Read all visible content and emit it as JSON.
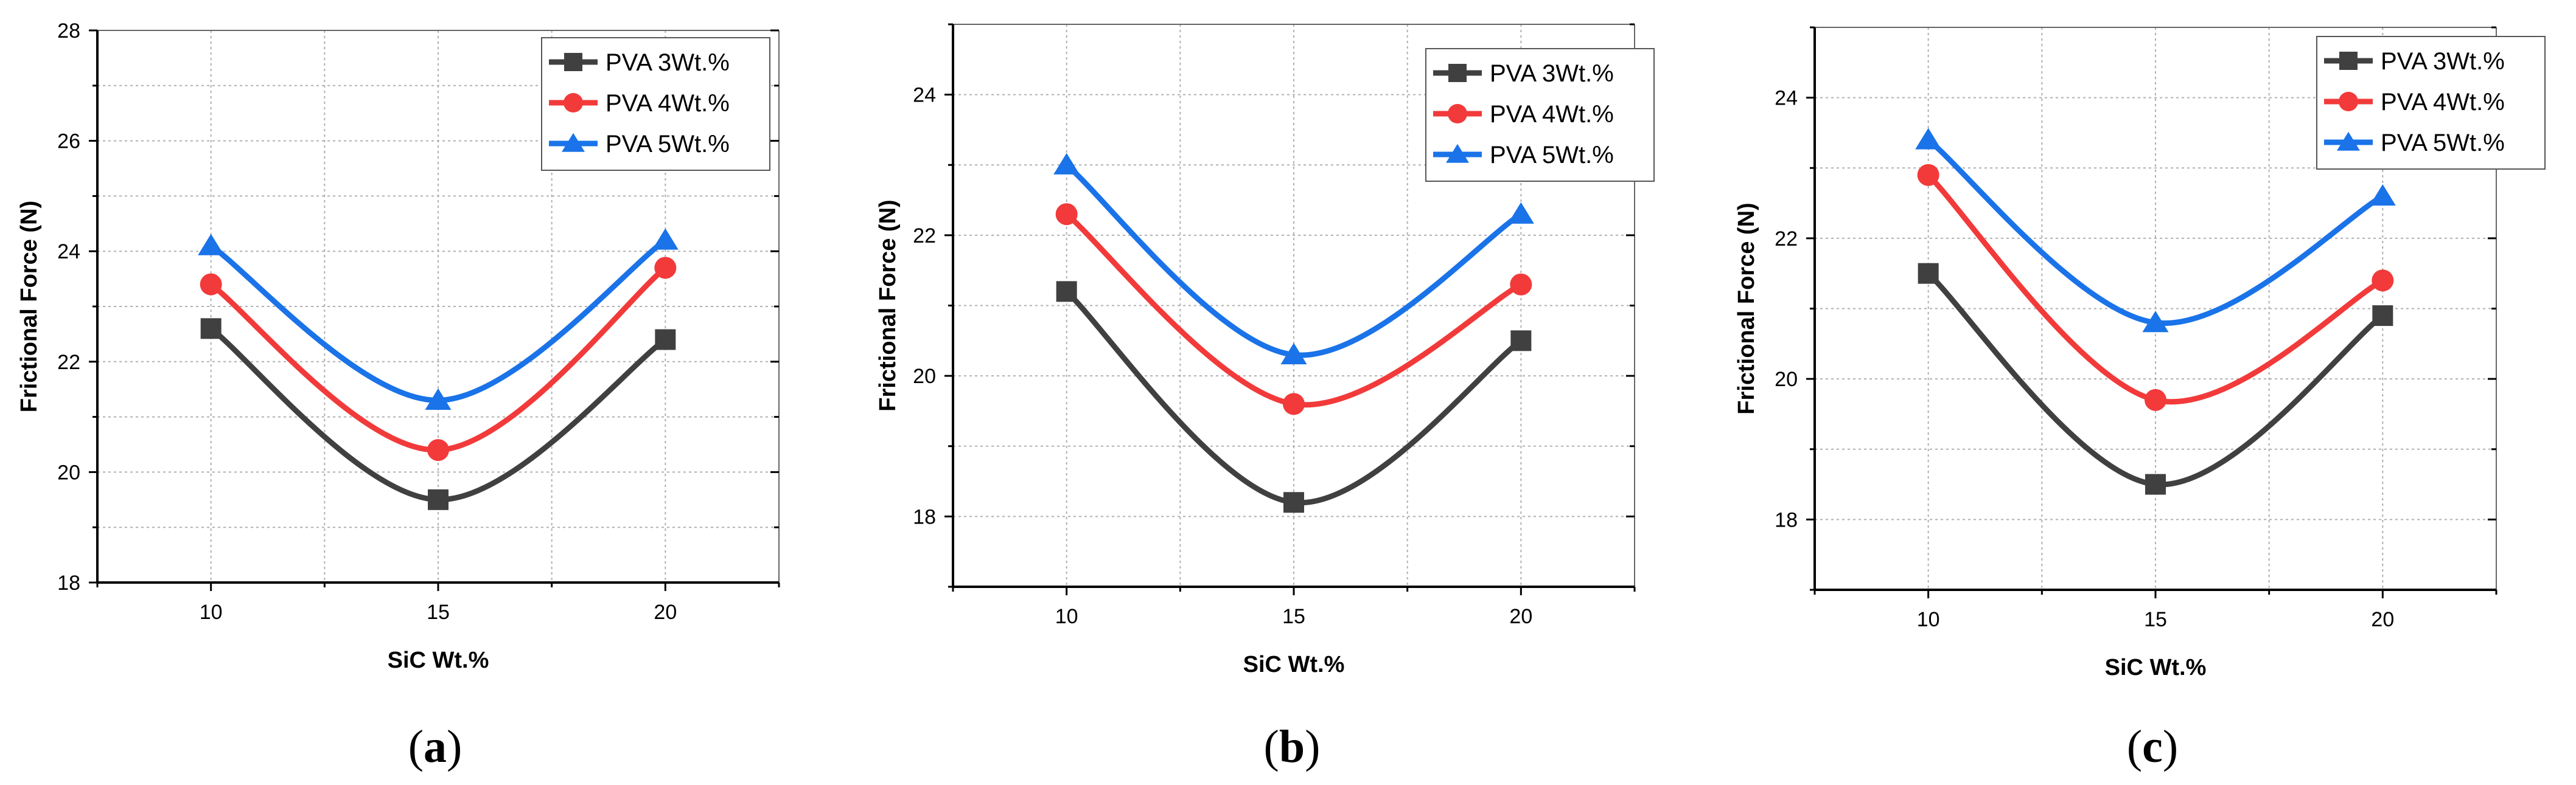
{
  "chart_data": [
    {
      "type": "line",
      "caption_letter": "a",
      "xlabel": "SiC Wt.%",
      "ylabel": "Frictional Force (N)",
      "categories": [
        "10",
        "15",
        "20"
      ],
      "x": [
        10,
        15,
        20
      ],
      "xlim": [
        7.5,
        22.5
      ],
      "ylim": [
        18,
        28
      ],
      "yticks": [
        18,
        20,
        22,
        24,
        26,
        28
      ],
      "grid": true,
      "legend_position": "top-right",
      "series": [
        {
          "name": "PVA 3Wt.%",
          "color": "#404040",
          "marker": "square",
          "values": [
            22.6,
            19.5,
            22.4
          ]
        },
        {
          "name": "PVA 4Wt.%",
          "color": "#f23a3a",
          "marker": "circle",
          "values": [
            23.4,
            20.4,
            23.7
          ]
        },
        {
          "name": "PVA 5Wt.%",
          "color": "#1a73e8",
          "marker": "triangle",
          "values": [
            24.1,
            21.3,
            24.2
          ]
        }
      ]
    },
    {
      "type": "line",
      "caption_letter": "b",
      "xlabel": "SiC Wt.%",
      "ylabel": "Frictional Force (N)",
      "categories": [
        "10",
        "15",
        "20"
      ],
      "x": [
        10,
        15,
        20
      ],
      "xlim": [
        7.5,
        22.5
      ],
      "ylim": [
        17,
        25
      ],
      "yticks": [
        18,
        20,
        22,
        24
      ],
      "grid": true,
      "legend_position": "top-right",
      "series": [
        {
          "name": "PVA 3Wt.%",
          "color": "#404040",
          "marker": "square",
          "values": [
            21.2,
            18.2,
            20.5
          ]
        },
        {
          "name": "PVA 4Wt.%",
          "color": "#f23a3a",
          "marker": "circle",
          "values": [
            22.3,
            19.6,
            21.3
          ]
        },
        {
          "name": "PVA 5Wt.%",
          "color": "#1a73e8",
          "marker": "triangle",
          "values": [
            23.0,
            20.3,
            22.3
          ]
        }
      ]
    },
    {
      "type": "line",
      "caption_letter": "c",
      "xlabel": "SiC Wt.%",
      "ylabel": "Frictional Force (N)",
      "categories": [
        "10",
        "15",
        "20"
      ],
      "x": [
        10,
        15,
        20
      ],
      "xlim": [
        7.5,
        22.5
      ],
      "ylim": [
        17,
        25
      ],
      "yticks": [
        18,
        20,
        22,
        24
      ],
      "grid": true,
      "legend_position": "top-right",
      "series": [
        {
          "name": "PVA 3Wt.%",
          "color": "#404040",
          "marker": "square",
          "values": [
            21.5,
            18.5,
            20.9
          ]
        },
        {
          "name": "PVA 4Wt.%",
          "color": "#f23a3a",
          "marker": "circle",
          "values": [
            22.9,
            19.7,
            21.4
          ]
        },
        {
          "name": "PVA 5Wt.%",
          "color": "#1a73e8",
          "marker": "triangle",
          "values": [
            23.4,
            20.8,
            22.6
          ]
        }
      ]
    }
  ]
}
